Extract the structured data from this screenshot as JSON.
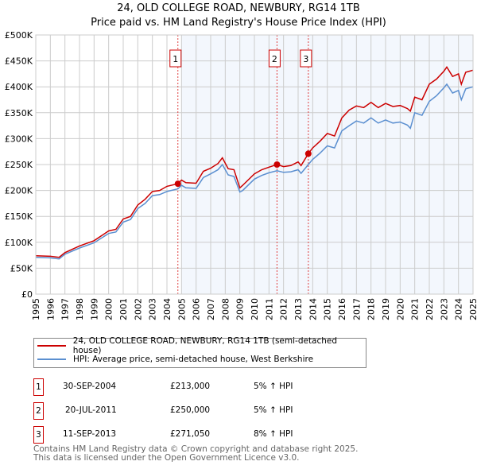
{
  "title": {
    "line1": "24, OLD COLLEGE ROAD, NEWBURY, RG14 1TB",
    "line2": "Price paid vs. HM Land Registry's House Price Index (HPI)"
  },
  "chart_data": {
    "type": "line",
    "ylim": [
      0,
      500000
    ],
    "xlim": [
      1995,
      2025
    ],
    "yticks": [
      {
        "v": 0,
        "label": "£0"
      },
      {
        "v": 50000,
        "label": "£50K"
      },
      {
        "v": 100000,
        "label": "£100K"
      },
      {
        "v": 150000,
        "label": "£150K"
      },
      {
        "v": 200000,
        "label": "£200K"
      },
      {
        "v": 250000,
        "label": "£250K"
      },
      {
        "v": 300000,
        "label": "£300K"
      },
      {
        "v": 350000,
        "label": "£350K"
      },
      {
        "v": 400000,
        "label": "£400K"
      },
      {
        "v": 450000,
        "label": "£450K"
      },
      {
        "v": 500000,
        "label": "£500K"
      }
    ],
    "xticks": [
      "1995",
      "1996",
      "1997",
      "1998",
      "1999",
      "2000",
      "2001",
      "2002",
      "2003",
      "2004",
      "2005",
      "2006",
      "2007",
      "2008",
      "2009",
      "2010",
      "2011",
      "2012",
      "2013",
      "2014",
      "2015",
      "2016",
      "2017",
      "2018",
      "2019",
      "2020",
      "2021",
      "2022",
      "2023",
      "2024",
      "2025"
    ],
    "grid": true,
    "shaded_from": 2005,
    "series": [
      {
        "name": "24, OLD COLLEGE ROAD, NEWBURY, RG14 1TB (semi-detached house)",
        "color": "#cc0000",
        "x": [
          1995,
          1996,
          1996.6,
          1997,
          1998,
          1999,
          2000,
          2000.5,
          2001,
          2001.5,
          2002,
          2002.5,
          2003,
          2003.5,
          2004,
          2004.75,
          2005,
          2005.3,
          2006,
          2006.5,
          2007,
          2007.5,
          2007.8,
          2008.2,
          2008.6,
          2009,
          2009.2,
          2010,
          2010.5,
          2011,
          2011.55,
          2012,
          2012.5,
          2013,
          2013.2,
          2013.7,
          2014,
          2014.5,
          2015,
          2015.5,
          2016,
          2016.5,
          2017,
          2017.5,
          2018,
          2018.5,
          2019,
          2019.5,
          2020,
          2020.5,
          2020.7,
          2021,
          2021.5,
          2022,
          2022.5,
          2023,
          2023.2,
          2023.6,
          2024,
          2024.2,
          2024.5,
          2025
        ],
        "y": [
          74000,
          73000,
          71000,
          80000,
          93000,
          103000,
          122000,
          125000,
          145000,
          150000,
          172000,
          183000,
          198000,
          200000,
          208000,
          213000,
          220000,
          215000,
          214000,
          237000,
          243000,
          252000,
          263000,
          242000,
          240000,
          205000,
          210000,
          232000,
          240000,
          245000,
          250000,
          246000,
          248000,
          255000,
          248000,
          271000,
          282000,
          295000,
          310000,
          305000,
          340000,
          355000,
          363000,
          360000,
          370000,
          360000,
          368000,
          362000,
          364000,
          358000,
          353000,
          380000,
          375000,
          405000,
          415000,
          430000,
          438000,
          420000,
          425000,
          405000,
          428000,
          432000
        ]
      },
      {
        "name": "HPI: Average price, semi-detached house, West Berkshire",
        "color": "#5b8fd0",
        "x": [
          1995,
          1996,
          1996.6,
          1997,
          1998,
          1999,
          2000,
          2000.5,
          2001,
          2001.5,
          2002,
          2002.5,
          2003,
          2003.5,
          2004,
          2004.75,
          2005,
          2005.3,
          2006,
          2006.5,
          2007,
          2007.5,
          2007.8,
          2008.2,
          2008.6,
          2009,
          2009.2,
          2010,
          2010.5,
          2011,
          2011.55,
          2012,
          2012.5,
          2013,
          2013.2,
          2013.7,
          2014,
          2014.5,
          2015,
          2015.5,
          2016,
          2016.5,
          2017,
          2017.5,
          2018,
          2018.5,
          2019,
          2019.5,
          2020,
          2020.5,
          2020.7,
          2021,
          2021.5,
          2022,
          2022.5,
          2023,
          2023.2,
          2023.6,
          2024,
          2024.2,
          2024.5,
          2025
        ],
        "y": [
          71000,
          70000,
          68000,
          77000,
          89000,
          99000,
          117000,
          120000,
          139000,
          144000,
          165000,
          175000,
          190000,
          192000,
          198000,
          203000,
          210000,
          205000,
          204000,
          225000,
          232000,
          240000,
          250000,
          230000,
          227000,
          197000,
          200000,
          222000,
          229000,
          234000,
          238000,
          235000,
          236000,
          240000,
          233000,
          250000,
          260000,
          272000,
          286000,
          282000,
          315000,
          325000,
          334000,
          330000,
          340000,
          330000,
          336000,
          330000,
          332000,
          326000,
          320000,
          350000,
          345000,
          372000,
          383000,
          398000,
          405000,
          388000,
          393000,
          375000,
          396000,
          400000
        ]
      }
    ],
    "sales": [
      {
        "n": "1",
        "x": 2004.75,
        "y": 213000
      },
      {
        "n": "2",
        "x": 2011.55,
        "y": 250000
      },
      {
        "n": "3",
        "x": 2013.7,
        "y": 271050
      }
    ]
  },
  "legend": {
    "red": "24, OLD COLLEGE ROAD, NEWBURY, RG14 1TB (semi-detached house)",
    "blue": "HPI: Average price, semi-detached house, West Berkshire"
  },
  "table": [
    {
      "n": "1",
      "date": "30-SEP-2004",
      "price": "£213,000",
      "hpi": "5% ↑ HPI"
    },
    {
      "n": "2",
      "date": "20-JUL-2011",
      "price": "£250,000",
      "hpi": "5% ↑ HPI"
    },
    {
      "n": "3",
      "date": "11-SEP-2013",
      "price": "£271,050",
      "hpi": "8% ↑ HPI"
    }
  ],
  "footer": {
    "line1": "Contains HM Land Registry data © Crown copyright and database right 2025.",
    "line2": "This data is licensed under the Open Government Licence v3.0."
  }
}
